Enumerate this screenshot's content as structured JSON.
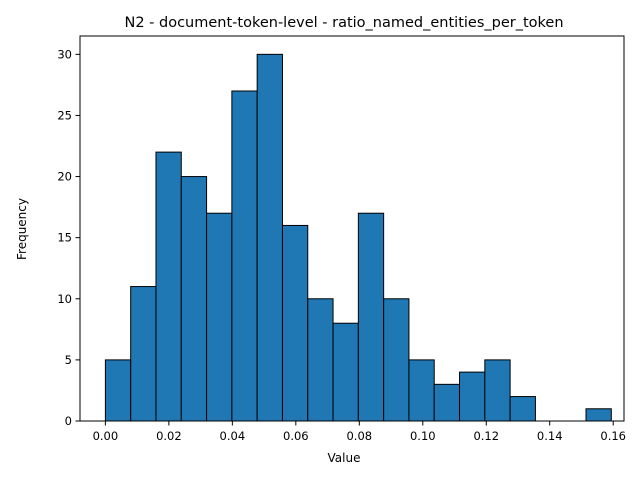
{
  "chart_data": {
    "type": "bar",
    "title": "N2 - document-token-level - ratio_named_entities_per_token",
    "xlabel": "Value",
    "ylabel": "Frequency",
    "bin_start": 0.0,
    "bin_width": 0.00797,
    "values": [
      5,
      11,
      22,
      20,
      17,
      27,
      30,
      16,
      10,
      8,
      17,
      10,
      5,
      3,
      4,
      5,
      2,
      0,
      0,
      1
    ],
    "xlim": [
      -0.008,
      0.1634
    ],
    "ylim": [
      0,
      31.5
    ],
    "xticks": [
      "0.00",
      "0.02",
      "0.04",
      "0.06",
      "0.08",
      "0.10",
      "0.12",
      "0.14",
      "0.16"
    ],
    "yticks": [
      "0",
      "5",
      "10",
      "15",
      "20",
      "25",
      "30"
    ],
    "bar_color": "#1f77b4",
    "edge_color": "#000000",
    "grid": false,
    "legend": "none"
  }
}
